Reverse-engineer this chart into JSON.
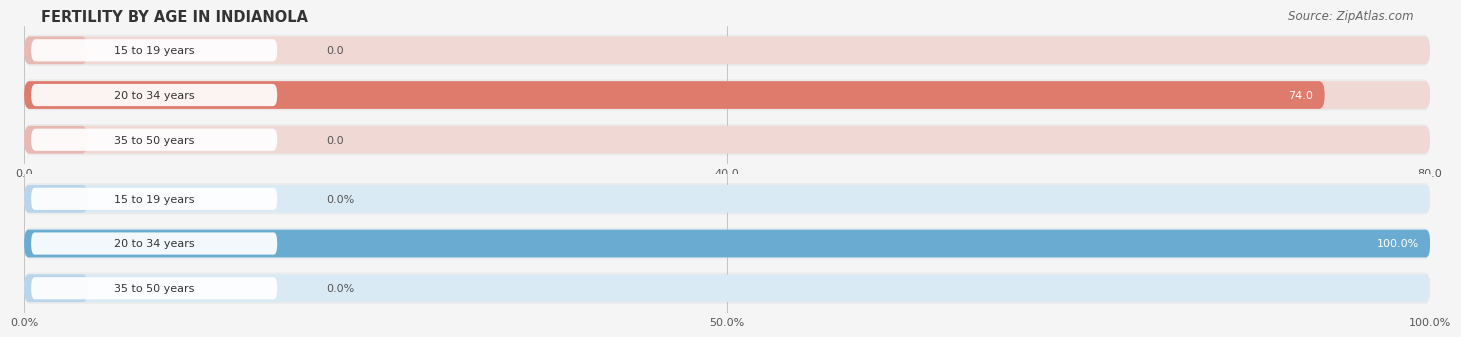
{
  "title": "FERTILITY BY AGE IN INDIANOLA",
  "source": "Source: ZipAtlas.com",
  "top_chart": {
    "categories": [
      "15 to 19 years",
      "20 to 34 years",
      "35 to 50 years"
    ],
    "values": [
      0.0,
      74.0,
      0.0
    ],
    "xlim_max": 80.0,
    "xticks": [
      0.0,
      40.0,
      80.0
    ],
    "bar_color": "#df7b6d",
    "bar_bg_color": "#f0d8d5",
    "bar_zero_color": "#e8b8b2"
  },
  "bottom_chart": {
    "categories": [
      "15 to 19 years",
      "20 to 34 years",
      "35 to 50 years"
    ],
    "values": [
      0.0,
      100.0,
      0.0
    ],
    "xlim_max": 100.0,
    "xticks": [
      0.0,
      50.0,
      100.0
    ],
    "xtick_labels": [
      "0.0%",
      "50.0%",
      "100.0%"
    ],
    "bar_color": "#6aabd2",
    "bar_bg_color": "#daeaf5",
    "bar_zero_color": "#b8d5ec"
  },
  "fig_bg_color": "#f5f5f5",
  "chart_bg_color": "#f5f5f5",
  "bar_row_bg": "#ebebeb",
  "white_label_bg": "#ffffff",
  "title_fontsize": 10.5,
  "source_fontsize": 8.5,
  "label_fontsize": 8,
  "category_fontsize": 8,
  "tick_fontsize": 8
}
